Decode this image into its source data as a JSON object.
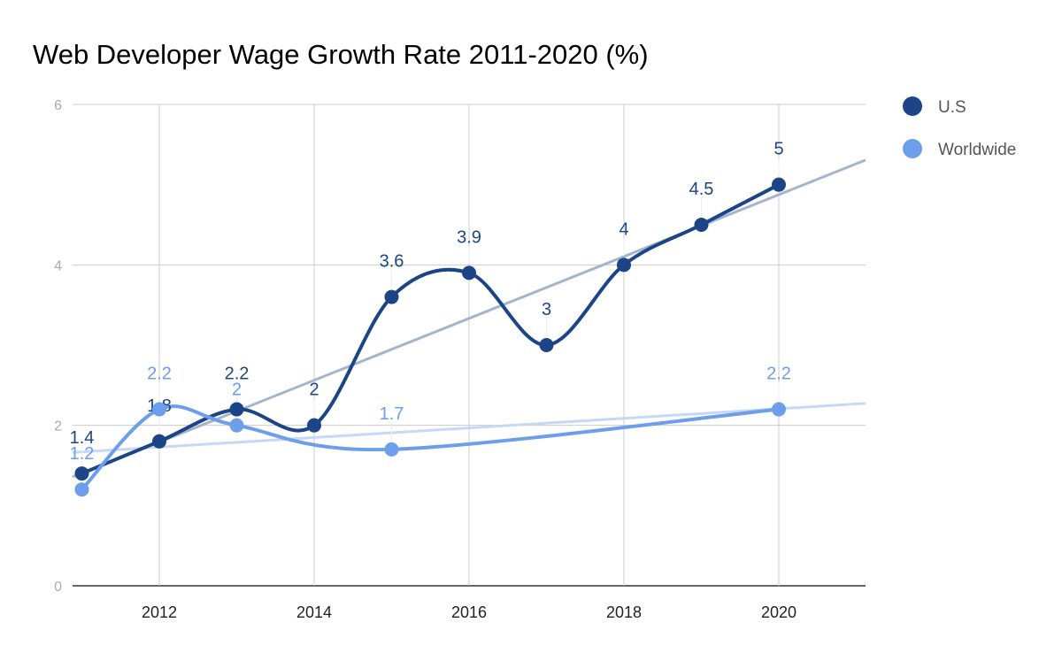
{
  "chart_data": {
    "type": "line",
    "title": "Web Developer Wage Growth Rate 2011-2020 (%)",
    "xlabel": "",
    "ylabel": "",
    "xlim": [
      2010.88,
      2021.12
    ],
    "ylim": [
      0,
      6
    ],
    "x_ticks": [
      "2012",
      "2014",
      "2016",
      "2018",
      "2020"
    ],
    "y_ticks": [
      "0",
      "2",
      "4",
      "6"
    ],
    "grid": true,
    "smooth": true,
    "trendlines": true,
    "legend_position": "right",
    "series": [
      {
        "name": "U.S",
        "color": "#1c4587",
        "trend_color": "#a4b4cc",
        "points": [
          [
            2011,
            1.4
          ],
          [
            2012,
            1.8
          ],
          [
            2013,
            2.2
          ],
          [
            2014,
            2
          ],
          [
            2015,
            3.6
          ],
          [
            2016,
            3.9
          ],
          [
            2017,
            3
          ],
          [
            2018,
            4
          ],
          [
            2019,
            4.5
          ],
          [
            2020,
            5
          ]
        ]
      },
      {
        "name": "Worldwide",
        "color": "#6d9eeb",
        "trend_color": "#c5d8f6",
        "points": [
          [
            2011,
            1.2
          ],
          [
            2012,
            2.2
          ],
          [
            2013,
            2
          ],
          [
            2015,
            1.7
          ],
          [
            2020,
            2.2
          ]
        ]
      }
    ]
  }
}
